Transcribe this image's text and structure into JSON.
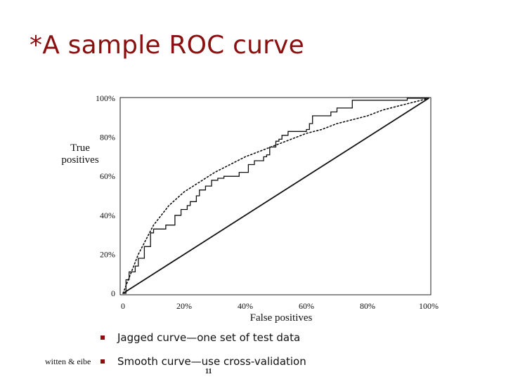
{
  "slide": {
    "title": "*A sample ROC curve",
    "bullets": [
      "Jagged curve—one set of test data",
      "Smooth curve—use cross-validation"
    ],
    "footer": "witten & eibe",
    "page_number": "11",
    "accent_color": "#8a0f0f"
  },
  "chart_data": {
    "type": "line",
    "xlabel": "False positives",
    "ylabel": "True positives",
    "x_ticks": [
      "0",
      "20%",
      "40%",
      "60%",
      "80%",
      "100%"
    ],
    "y_ticks": [
      "0",
      "20%",
      "40%",
      "60%",
      "80%",
      "100%"
    ],
    "xlim": [
      0,
      100
    ],
    "ylim": [
      0,
      100
    ],
    "grid": false,
    "legend": "none",
    "series": [
      {
        "style": "jagged-solid",
        "x": [
          0,
          1,
          1,
          2,
          2,
          4,
          4,
          5,
          5,
          7,
          7,
          9,
          9,
          10,
          10,
          14,
          14,
          17,
          17,
          19,
          19,
          21,
          21,
          22,
          22,
          24,
          24,
          25,
          25,
          27,
          27,
          29,
          29,
          31,
          31,
          33,
          33,
          38,
          38,
          41,
          41,
          43,
          43,
          46,
          46,
          47,
          47,
          48,
          48,
          50,
          50,
          51,
          51,
          52,
          52,
          54,
          54,
          60,
          60,
          61,
          61,
          62,
          62,
          68,
          68,
          70,
          70,
          75,
          75,
          93,
          93,
          100
        ],
        "y": [
          0,
          0,
          7,
          7,
          11,
          11,
          14,
          14,
          18,
          18,
          24,
          24,
          31,
          31,
          33,
          33,
          35,
          35,
          40,
          40,
          43,
          43,
          45,
          45,
          47,
          47,
          50,
          50,
          53,
          53,
          55,
          55,
          58,
          58,
          59,
          59,
          60,
          60,
          62,
          62,
          66,
          66,
          68,
          68,
          70,
          70,
          71,
          71,
          75,
          75,
          78,
          78,
          79,
          79,
          81,
          81,
          83,
          83,
          84,
          84,
          87,
          87,
          91,
          91,
          93,
          93,
          95,
          95,
          99,
          99,
          100,
          100
        ]
      },
      {
        "style": "smooth-dotted",
        "x": [
          0,
          5,
          10,
          15,
          20,
          25,
          30,
          35,
          40,
          45,
          50,
          55,
          60,
          65,
          70,
          75,
          80,
          85,
          90,
          95,
          100
        ],
        "y": [
          0,
          20,
          35,
          45,
          52,
          57,
          62,
          66,
          70,
          73,
          76,
          79,
          82,
          84,
          87,
          89,
          91,
          94,
          96,
          98,
          100
        ]
      },
      {
        "style": "diagonal-solid",
        "x": [
          0,
          100
        ],
        "y": [
          0,
          100
        ]
      }
    ]
  }
}
